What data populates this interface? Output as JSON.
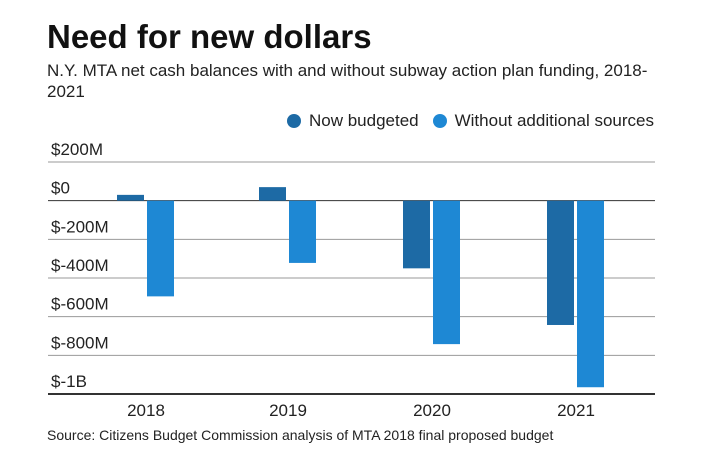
{
  "chart_data": {
    "type": "bar",
    "title": "Need for new dollars",
    "subtitle": "N.Y. MTA net cash balances with and without subway action plan funding, 2018-2021",
    "categories": [
      "2018",
      "2019",
      "2020",
      "2021"
    ],
    "series": [
      {
        "name": "Now budgeted",
        "color": "#1d6aa5",
        "values": [
          30,
          70,
          -350,
          -643
        ]
      },
      {
        "name": "Without additional sources",
        "color": "#1e88d4",
        "values": [
          -495,
          -322,
          -742,
          -965
        ]
      }
    ],
    "ylim": [
      -1000,
      200
    ],
    "yticks": [
      200,
      0,
      -200,
      -400,
      -600,
      -800,
      -1000
    ],
    "ytick_labels": [
      "$200M",
      "$0",
      "$-200M",
      "$-400M",
      "$-600M",
      "$-800M",
      "$-1B"
    ],
    "grid": true,
    "legend": "top-right",
    "source": "Source: Citizens Budget Commission analysis of MTA 2018 final proposed budget"
  }
}
